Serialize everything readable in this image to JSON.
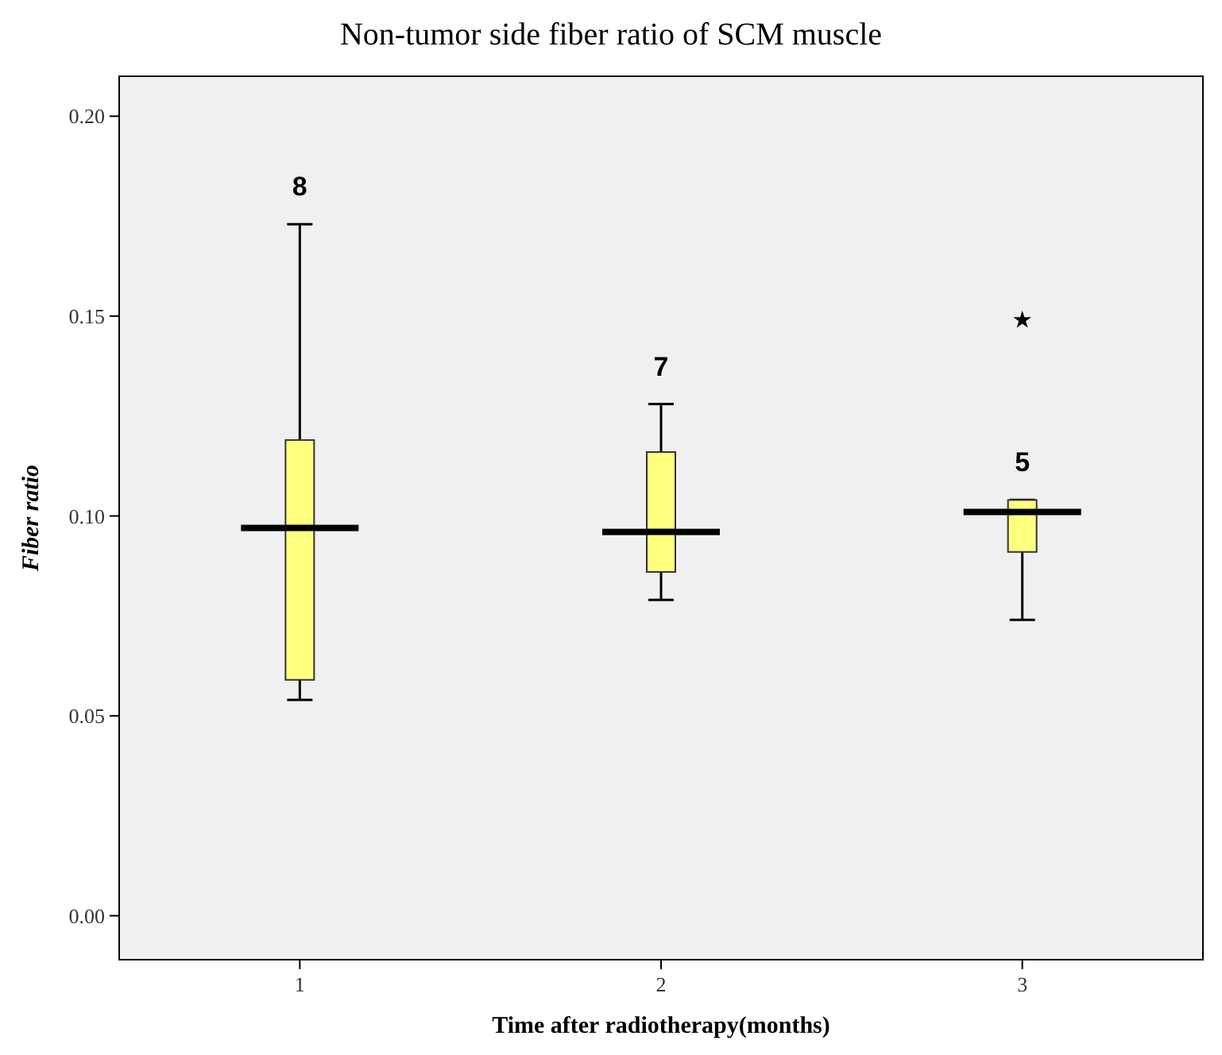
{
  "chart_data": {
    "type": "box",
    "title": "Non-tumor side fiber ratio of SCM muscle",
    "xlabel": "Time after radiotherapy(months)",
    "ylabel": "Fiber ratio",
    "categories": [
      "1",
      "2",
      "3"
    ],
    "boxes": [
      {
        "low": 0.054,
        "q1": 0.059,
        "median": 0.097,
        "q3": 0.119,
        "high": 0.173
      },
      {
        "low": 0.079,
        "q1": 0.086,
        "median": 0.096,
        "q3": 0.116,
        "high": 0.128
      },
      {
        "low": 0.074,
        "q1": 0.091,
        "median": 0.101,
        "q3": 0.104,
        "high": 0.104,
        "outliers": [
          0.149
        ]
      }
    ],
    "color": "#ffff80",
    "marker": "star",
    "ylim": [
      -0.011,
      0.21
    ],
    "yticks": [
      {
        "value": 0,
        "label": "0.00"
      },
      {
        "value": 0.05,
        "label": "0.05"
      },
      {
        "value": 0.1,
        "label": "0.10"
      },
      {
        "value": 0.15,
        "label": "0.15"
      },
      {
        "value": 0.2,
        "label": "0.20"
      }
    ],
    "grid": false,
    "annotations": [
      "8",
      "7",
      "5"
    ]
  }
}
